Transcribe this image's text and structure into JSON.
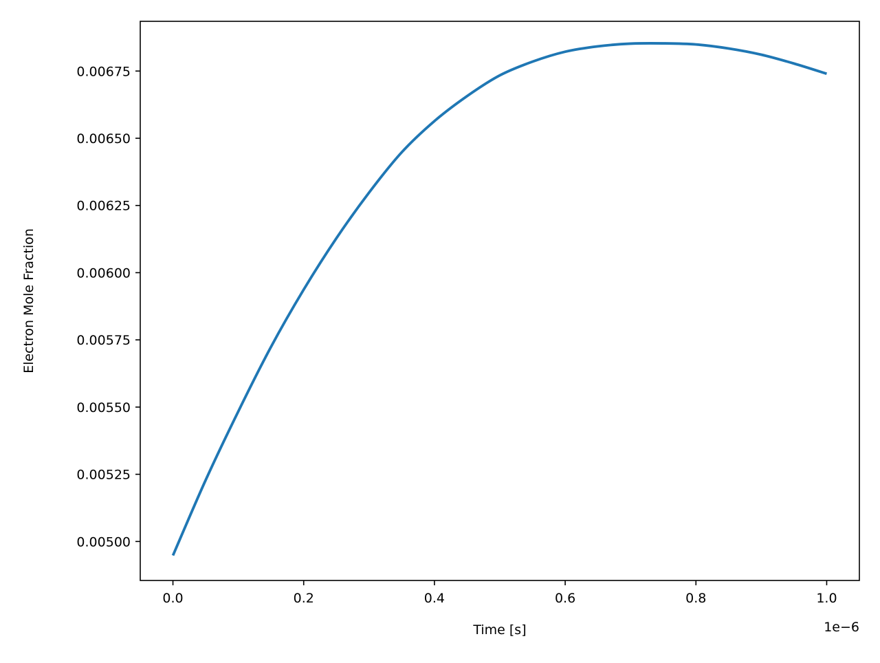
{
  "chart_data": {
    "type": "line",
    "title": "",
    "xlabel": "Time [s]",
    "ylabel": "Electron Mole Fraction",
    "x_offset_label": "1e−6",
    "xlim": [
      -0.05,
      1.05
    ],
    "ylim": [
      0.004855,
      0.006935
    ],
    "xticks": [
      0.0,
      0.2,
      0.4,
      0.6,
      0.8,
      1.0
    ],
    "xtick_labels": [
      "0.0",
      "0.2",
      "0.4",
      "0.6",
      "0.8",
      "1.0"
    ],
    "yticks": [
      0.005,
      0.00525,
      0.0055,
      0.00575,
      0.006,
      0.00625,
      0.0065,
      0.00675
    ],
    "ytick_labels": [
      "0.00500",
      "0.00525",
      "0.00550",
      "0.00575",
      "0.00600",
      "0.00625",
      "0.00650",
      "0.00675"
    ],
    "grid": false,
    "legend": false,
    "series": [
      {
        "color": "#1f77b4",
        "x": [
          0.0,
          0.05,
          0.1,
          0.15,
          0.2,
          0.25,
          0.3,
          0.35,
          0.4,
          0.45,
          0.5,
          0.55,
          0.6,
          0.65,
          0.7,
          0.75,
          0.8,
          0.85,
          0.9,
          0.95,
          1.0
        ],
        "y": [
          0.004948,
          0.005228,
          0.005484,
          0.005724,
          0.005937,
          0.006128,
          0.006298,
          0.006448,
          0.006564,
          0.006657,
          0.006734,
          0.006785,
          0.006822,
          0.006842,
          0.006852,
          0.006853,
          0.006849,
          0.006834,
          0.006811,
          0.006778,
          0.00674
        ]
      }
    ]
  }
}
